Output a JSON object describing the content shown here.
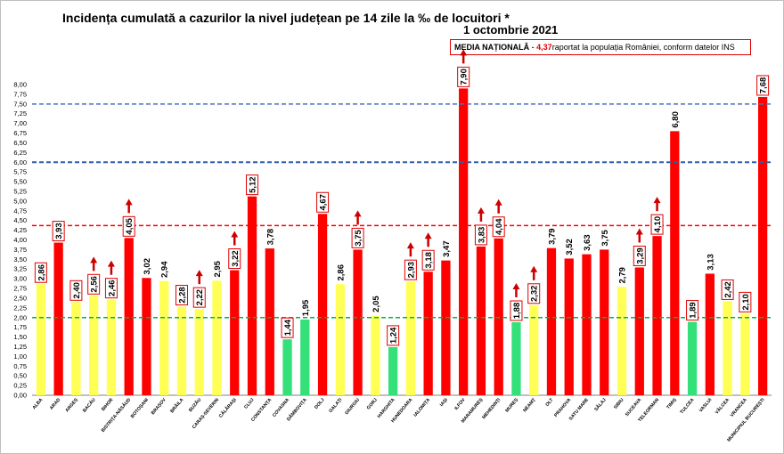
{
  "chart_data": {
    "type": "bar",
    "title": "Incidența cumulată a cazurilor la nivel județean pe 14 zile la ‰ de locuitori *",
    "date": "1 octombrie 2021",
    "national_average": {
      "label": "MEDIA NAȚIONALĂ",
      "dash": " - ",
      "value": "4,37",
      "note": "raportat la populația României, conform datelor INS"
    },
    "ylim": [
      0,
      8
    ],
    "ytick_step": 0.25,
    "reference_lines": [
      {
        "value": 7.5,
        "color": "#4472c4",
        "style": "dashed"
      },
      {
        "value": 6.0,
        "color": "#2e5dab",
        "style": "dashed"
      },
      {
        "value": 4.37,
        "color": "#ff0000",
        "style": "dashed"
      },
      {
        "value": 2.0,
        "color": "#00b050",
        "style": "dashed"
      }
    ],
    "colors": {
      "green": "#33e07a",
      "yellow": "#ffff55",
      "red": "#ff0000"
    },
    "categories": [
      "ALBA",
      "ARAD",
      "ARGEȘ",
      "BACĂU",
      "BIHOR",
      "BISTRIȚA-NĂSĂUD",
      "BOTOȘANI",
      "BRAȘOV",
      "BRĂILA",
      "BUZĂU",
      "CARAȘ-SEVERIN",
      "CĂLĂRAȘI",
      "CLUJ",
      "CONSTANȚA",
      "COVASNA",
      "DÂMBOVIȚA",
      "DOLJ",
      "GALAȚI",
      "GIURGIU",
      "GORJ",
      "HARGHITA",
      "HUNEDOARA",
      "IALOMIȚA",
      "IAȘI",
      "ILFOV",
      "MARAMUREȘ",
      "MEHEDINȚI",
      "MUREȘ",
      "NEAMȚ",
      "OLT",
      "PRAHOVA",
      "SATU MARE",
      "SĂLAJ",
      "SIBIU",
      "SUCEAVA",
      "TELEORMAN",
      "TIMIȘ",
      "TULCEA",
      "VASLUI",
      "VÂLCEA",
      "VRANCEA",
      "MUNICIPIUL BUCUREȘTI"
    ],
    "values": [
      2.86,
      3.93,
      2.4,
      2.56,
      2.46,
      4.05,
      3.02,
      2.94,
      2.28,
      2.22,
      2.95,
      3.22,
      5.12,
      3.78,
      1.44,
      1.95,
      4.67,
      2.86,
      3.75,
      2.05,
      1.24,
      2.93,
      3.18,
      3.47,
      7.9,
      3.83,
      4.04,
      1.88,
      2.32,
      3.79,
      3.52,
      3.63,
      3.75,
      2.79,
      3.29,
      4.1,
      6.8,
      1.89,
      3.13,
      2.42,
      2.1,
      7.68
    ],
    "value_labels": [
      "2,86",
      "3,93",
      "2,40",
      "2,56",
      "2,46",
      "4,05",
      "3,02",
      "2,94",
      "2,28",
      "2,22",
      "2,95",
      "3,22",
      "5,12",
      "3,78",
      "1,44",
      "1,95",
      "4,67",
      "2,86",
      "3,75",
      "2,05",
      "1,24",
      "2,93",
      "3,18",
      "3,47",
      "7,90",
      "3,83",
      "4,04",
      "1,88",
      "2,32",
      "3,79",
      "3,52",
      "3,63",
      "3,75",
      "2,79",
      "3,29",
      "4,10",
      "6,80",
      "1,89",
      "3,13",
      "2,42",
      "2,10",
      "7,68"
    ],
    "bar_colors": [
      "yellow",
      "red",
      "yellow",
      "yellow",
      "yellow",
      "red",
      "red",
      "yellow",
      "yellow",
      "yellow",
      "yellow",
      "red",
      "red",
      "red",
      "green",
      "green",
      "red",
      "yellow",
      "red",
      "yellow",
      "green",
      "yellow",
      "red",
      "red",
      "red",
      "red",
      "red",
      "green",
      "yellow",
      "red",
      "red",
      "red",
      "red",
      "yellow",
      "red",
      "red",
      "red",
      "green",
      "red",
      "yellow",
      "yellow",
      "red"
    ],
    "boxed_labels": [
      true,
      true,
      true,
      true,
      true,
      true,
      false,
      false,
      true,
      true,
      false,
      true,
      true,
      false,
      true,
      false,
      true,
      false,
      true,
      false,
      true,
      true,
      true,
      false,
      true,
      true,
      true,
      true,
      true,
      false,
      false,
      false,
      false,
      false,
      true,
      true,
      false,
      true,
      false,
      true,
      true,
      true
    ],
    "up_arrows": [
      false,
      false,
      false,
      true,
      true,
      true,
      false,
      false,
      false,
      true,
      false,
      true,
      false,
      false,
      false,
      false,
      false,
      false,
      true,
      false,
      false,
      true,
      true,
      false,
      true,
      true,
      true,
      true,
      true,
      false,
      false,
      false,
      false,
      false,
      true,
      true,
      false,
      false,
      false,
      false,
      false,
      false
    ],
    "yticks": [
      "0,00",
      "0,25",
      "0,50",
      "0,75",
      "1,00",
      "1,25",
      "1,50",
      "1,75",
      "2,00",
      "2,25",
      "2,50",
      "2,75",
      "3,00",
      "3,25",
      "3,50",
      "3,75",
      "4,00",
      "4,25",
      "4,50",
      "4,75",
      "5,00",
      "5,25",
      "5,50",
      "5,75",
      "6,00",
      "6,25",
      "6,50",
      "6,75",
      "7,00",
      "7,25",
      "7,50",
      "7,75",
      "8,00"
    ]
  }
}
